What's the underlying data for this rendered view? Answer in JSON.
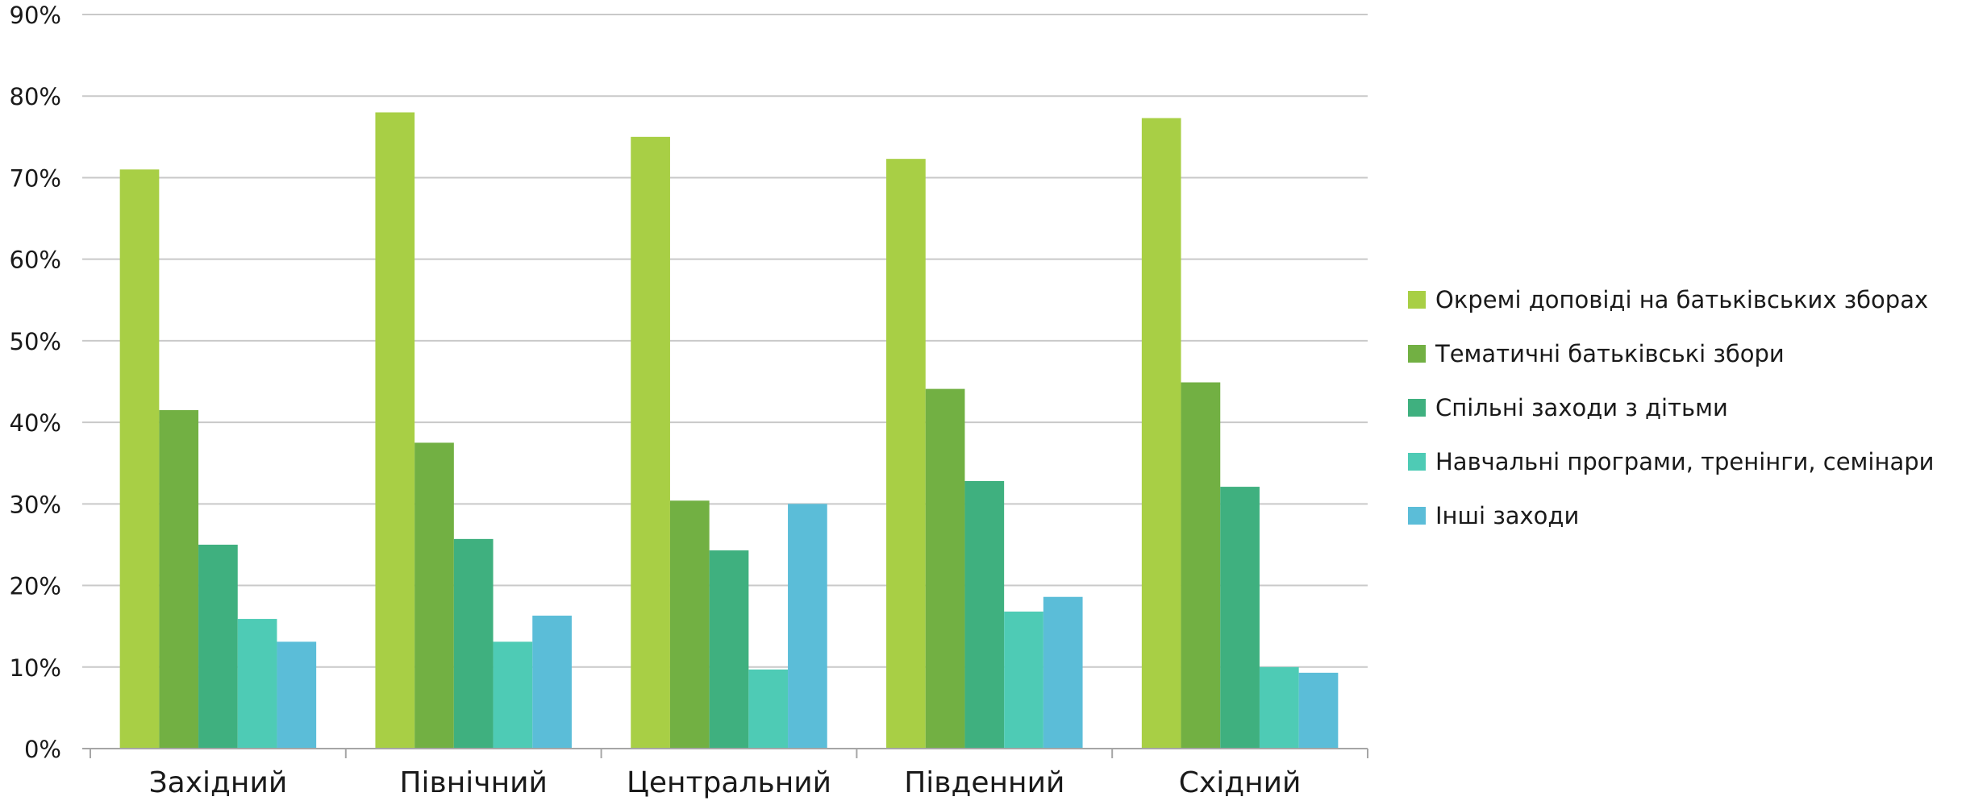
{
  "chart_data": {
    "type": "bar",
    "title": "",
    "xlabel": "",
    "ylabel": "",
    "categories": [
      "Західний",
      "Північний",
      "Центральний",
      "Південний",
      "Східний"
    ],
    "series": [
      {
        "name": "Окремі доповіді на батьківських зборах",
        "color": "#a8cf45",
        "values": [
          71,
          78,
          75,
          72.3,
          77.3
        ]
      },
      {
        "name": "Тематичні батьківські збори",
        "color": "#72b043",
        "values": [
          41.5,
          37.5,
          30.4,
          44.1,
          44.9
        ]
      },
      {
        "name": "Спільні заходи з дітьми",
        "color": "#3fb07f",
        "values": [
          25,
          25.7,
          24.3,
          32.8,
          32.1
        ]
      },
      {
        "name": "Навчальні програми, тренінги, семінари",
        "color": "#4ecbb5",
        "values": [
          15.9,
          13.1,
          9.7,
          16.8,
          10
        ]
      },
      {
        "name": "Інші заходи",
        "color": "#5bbdd8",
        "values": [
          13.1,
          16.3,
          30,
          18.6,
          9.3
        ]
      }
    ],
    "y_ticks": [
      "0%",
      "10%",
      "20%",
      "30%",
      "40%",
      "50%",
      "60%",
      "70%",
      "80%",
      "90%"
    ],
    "ylim": [
      0,
      90
    ],
    "unit": "%",
    "grid": true,
    "legend_position": "right"
  }
}
